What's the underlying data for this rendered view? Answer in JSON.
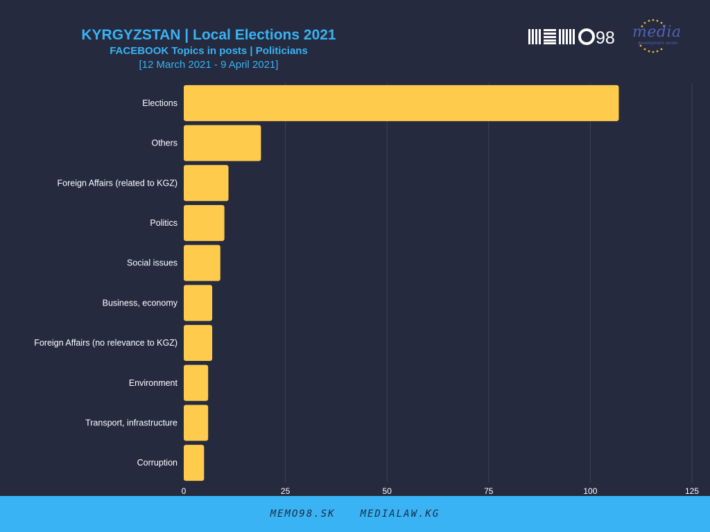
{
  "header": {
    "title": "KYRGYZSTAN | Local Elections 2021",
    "subtitle": "FACEBOOK Topics in posts | Politicians",
    "daterange": "[12 March 2021 - 9 April 2021]"
  },
  "logos": {
    "memo": "MEMO98",
    "media": "media",
    "media_sub": "development center"
  },
  "footer": {
    "link1": "MEMO98.SK",
    "link2": "MEDIALAW.KG"
  },
  "colors": {
    "background": "#252a3f",
    "bar": "#ffcb4c",
    "accent": "#39b3f4",
    "grid": "#3d4259"
  },
  "chart_data": {
    "type": "bar",
    "orientation": "horizontal",
    "categories": [
      "Elections",
      "Others",
      "Foreign Affairs (related to KGZ)",
      "Politics",
      "Social issues",
      "Business, economy",
      "Foreign Affairs (no relevance to KGZ)",
      "Environment",
      "Transport, infrastructure",
      "Corruption"
    ],
    "values": [
      107,
      19,
      11,
      10,
      9,
      7,
      7,
      6,
      6,
      5
    ],
    "xlim": [
      0,
      125
    ],
    "xticks": [
      0,
      25,
      50,
      75,
      100,
      125
    ],
    "grid": true
  }
}
